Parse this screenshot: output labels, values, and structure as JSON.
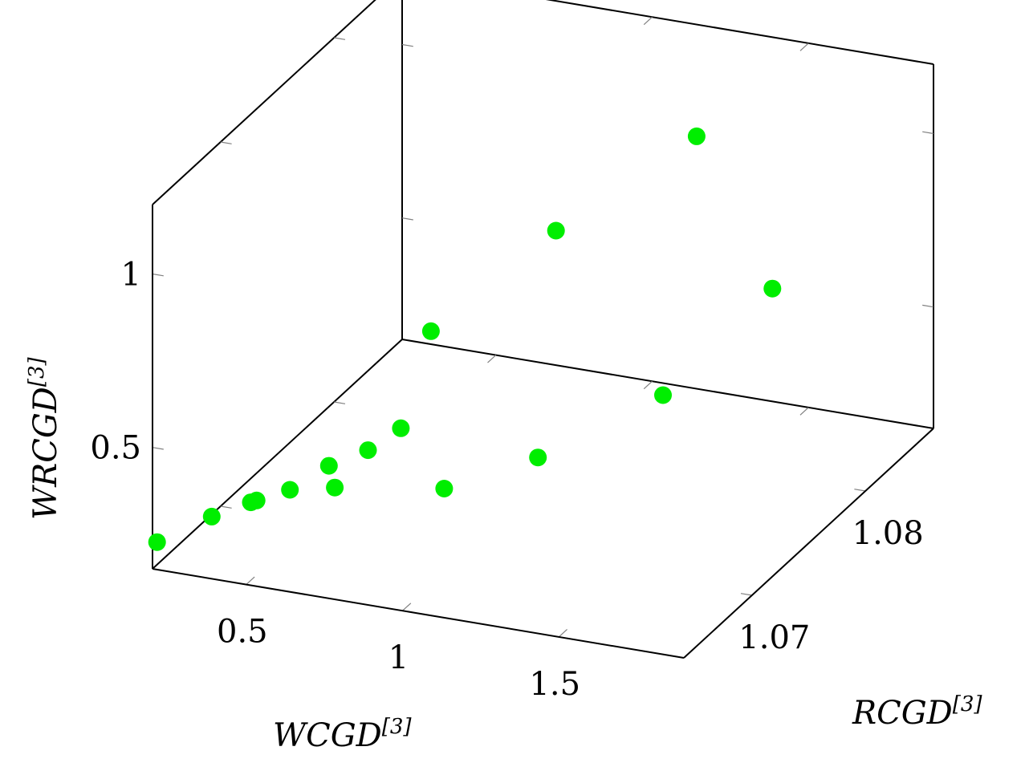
{
  "chart_data": {
    "type": "scatter",
    "title": "",
    "xlabel": {
      "base": "WCGD",
      "sup": "[3]"
    },
    "ylabel": {
      "base": "RCGD",
      "sup": "[3]"
    },
    "zlabel": {
      "base": "WRCGD",
      "sup": "[3]"
    },
    "xlim": [
      0.2,
      1.9
    ],
    "ylim": [
      1.064,
      1.086
    ],
    "zlim": [
      0.15,
      1.2
    ],
    "x_ticks": [
      {
        "value": 0.5,
        "label": "0.5"
      },
      {
        "value": 1.0,
        "label": "1"
      },
      {
        "value": 1.5,
        "label": "1.5"
      }
    ],
    "y_ticks": [
      {
        "value": 1.07,
        "label": "1.07"
      },
      {
        "value": 1.08,
        "label": "1.08"
      }
    ],
    "z_ticks": [
      {
        "value": 0.5,
        "label": "0.5"
      },
      {
        "value": 1.0,
        "label": "1"
      }
    ],
    "marker_color": "#00ee00",
    "points": [
      {
        "x": 0.2,
        "y": 1.0644,
        "z": 0.215
      },
      {
        "x": 0.375,
        "y": 1.0644,
        "z": 0.315
      },
      {
        "x": 0.5,
        "y": 1.0644,
        "z": 0.375
      },
      {
        "x": 0.625,
        "y": 1.0644,
        "z": 0.43
      },
      {
        "x": 0.75,
        "y": 1.0644,
        "z": 0.518
      },
      {
        "x": 0.875,
        "y": 1.0644,
        "z": 0.582
      },
      {
        "x": 0.98,
        "y": 1.0644,
        "z": 0.661
      },
      {
        "x": 0.25,
        "y": 1.0718,
        "z": 0.12
      },
      {
        "x": 0.5,
        "y": 1.0718,
        "z": 0.195
      },
      {
        "x": 0.85,
        "y": 1.0718,
        "z": 0.245
      },
      {
        "x": 1.15,
        "y": 1.0718,
        "z": 0.38
      },
      {
        "x": 1.55,
        "y": 1.0718,
        "z": 0.62
      },
      {
        "x": 1.9,
        "y": 1.0718,
        "z": 0.98
      },
      {
        "x": 0.55,
        "y": 1.0789,
        "z": 0.44
      },
      {
        "x": 0.95,
        "y": 1.0789,
        "z": 0.79
      },
      {
        "x": 1.4,
        "y": 1.0789,
        "z": 1.13
      }
    ]
  }
}
